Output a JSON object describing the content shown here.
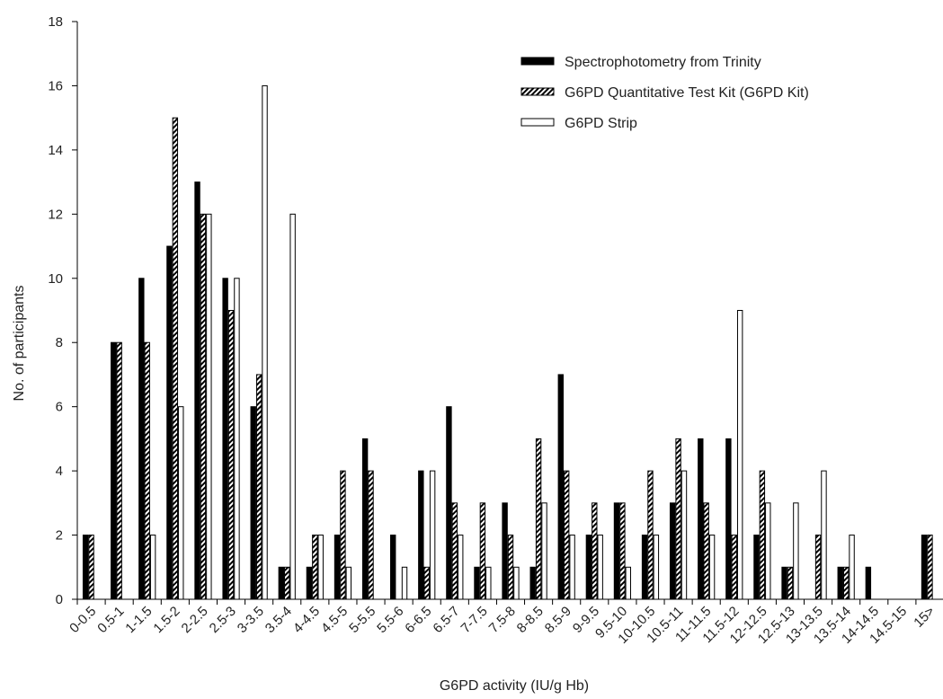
{
  "chart_data": {
    "type": "bar",
    "xlabel": "G6PD activity (IU/g Hb)",
    "ylabel": "No. of participants",
    "ylim": [
      0,
      18
    ],
    "yticks": [
      0,
      2,
      4,
      6,
      8,
      10,
      12,
      14,
      16,
      18
    ],
    "grid": false,
    "legend_position": "top-right",
    "categories": [
      "0-0.5",
      "0.5-1",
      "1-1.5",
      "1.5-2",
      "2-2.5",
      "2.5-3",
      "3-3.5",
      "3.5-4",
      "4-4.5",
      "4.5-5",
      "5-5.5",
      "5.5-6",
      "6-6.5",
      "6.5-7",
      "7-7.5",
      "7.5-8",
      "8-8.5",
      "8.5-9",
      "9-9.5",
      "9.5-10",
      "10-10.5",
      "10.5-11",
      "11-11.5",
      "11.5-12",
      "12-12.5",
      "12.5-13",
      "13-13.5",
      "13.5-14",
      "14-14.5",
      "14.5-15",
      "15>"
    ],
    "series": [
      {
        "name": "Spectrophotometry from Trinity",
        "style": "solid",
        "values": [
          2,
          8,
          10,
          11,
          13,
          10,
          6,
          1,
          1,
          2,
          5,
          2,
          4,
          6,
          1,
          3,
          1,
          7,
          2,
          3,
          2,
          3,
          5,
          5,
          2,
          1,
          0,
          1,
          1,
          0,
          2
        ]
      },
      {
        "name": "G6PD Quantitative Test Kit (G6PD Kit)",
        "style": "hatched",
        "values": [
          2,
          8,
          8,
          15,
          12,
          9,
          7,
          1,
          2,
          4,
          4,
          0,
          1,
          3,
          3,
          2,
          5,
          4,
          3,
          3,
          4,
          5,
          3,
          2,
          4,
          1,
          2,
          1,
          0,
          0,
          2
        ]
      },
      {
        "name": "G6PD Strip",
        "style": "open",
        "values": [
          0,
          0,
          2,
          6,
          12,
          10,
          16,
          12,
          2,
          1,
          0,
          1,
          4,
          2,
          1,
          1,
          3,
          2,
          2,
          1,
          2,
          4,
          2,
          9,
          3,
          3,
          4,
          2,
          0,
          0,
          0
        ]
      }
    ]
  }
}
